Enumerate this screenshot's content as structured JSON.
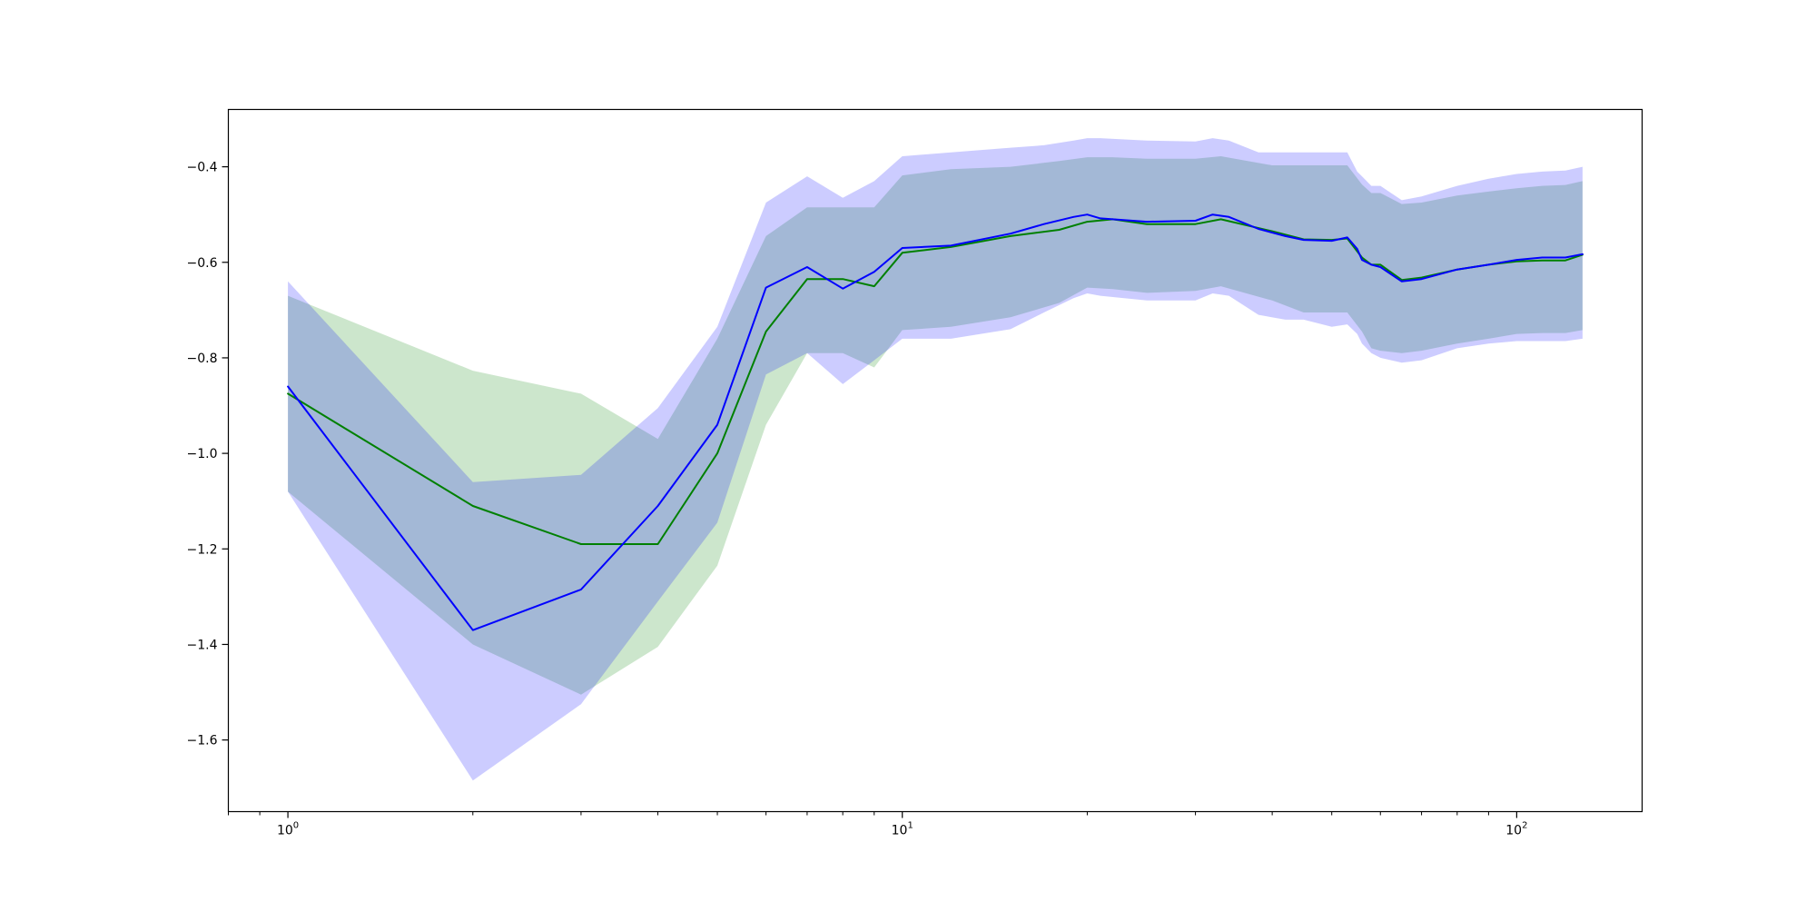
{
  "chart_data": {
    "type": "line",
    "title": "",
    "xlabel": "",
    "ylabel": "",
    "x_scale": "log",
    "xlim": [
      0.8,
      160
    ],
    "ylim": [
      -1.75,
      -0.28
    ],
    "grid": false,
    "x_ticks": [
      {
        "value": 1,
        "base": "10",
        "exp": "0"
      },
      {
        "value": 10,
        "base": "10",
        "exp": "1"
      },
      {
        "value": 100,
        "base": "10",
        "exp": "2"
      }
    ],
    "x_minor_ticks": [
      0.8,
      0.9,
      2,
      3,
      4,
      5,
      6,
      7,
      8,
      9,
      20,
      30,
      40,
      50,
      60,
      70,
      80,
      90
    ],
    "y_ticks": [
      {
        "value": -0.4,
        "label": "−0.4"
      },
      {
        "value": -0.6,
        "label": "−0.6"
      },
      {
        "value": -0.8,
        "label": "−0.8"
      },
      {
        "value": -1.0,
        "label": "−1.0"
      },
      {
        "value": -1.2,
        "label": "−1.2"
      },
      {
        "value": -1.4,
        "label": "−1.4"
      },
      {
        "value": -1.6,
        "label": "−1.6"
      }
    ],
    "series": [
      {
        "color": "#008000",
        "band_color": "#008000",
        "band_opacity": 0.2,
        "x": [
          1,
          2,
          3,
          4,
          5,
          6,
          7,
          8,
          9,
          10,
          12,
          15,
          18,
          20,
          22,
          25,
          30,
          33,
          40,
          45,
          50,
          53,
          56,
          58,
          60,
          65,
          70,
          80,
          90,
          100,
          110,
          120,
          128
        ],
        "y": [
          -0.875,
          -1.11,
          -1.19,
          -1.19,
          -1.0,
          -0.745,
          -0.635,
          -0.635,
          -0.65,
          -0.58,
          -0.568,
          -0.545,
          -0.532,
          -0.515,
          -0.51,
          -0.52,
          -0.52,
          -0.51,
          -0.535,
          -0.552,
          -0.553,
          -0.55,
          -0.59,
          -0.605,
          -0.605,
          -0.637,
          -0.632,
          -0.615,
          -0.605,
          -0.598,
          -0.596,
          -0.596,
          -0.584
        ],
        "upper": [
          -0.67,
          -0.827,
          -0.875,
          -0.97,
          -0.76,
          -0.545,
          -0.485,
          -0.485,
          -0.485,
          -0.418,
          -0.405,
          -0.4,
          -0.388,
          -0.38,
          -0.38,
          -0.383,
          -0.383,
          -0.378,
          -0.397,
          -0.397,
          -0.397,
          -0.397,
          -0.437,
          -0.455,
          -0.455,
          -0.478,
          -0.475,
          -0.46,
          -0.452,
          -0.445,
          -0.44,
          -0.438,
          -0.43
        ],
        "lower": [
          -1.08,
          -1.4,
          -1.505,
          -1.405,
          -1.235,
          -0.94,
          -0.79,
          -0.79,
          -0.82,
          -0.742,
          -0.735,
          -0.715,
          -0.685,
          -0.653,
          -0.656,
          -0.664,
          -0.66,
          -0.65,
          -0.68,
          -0.705,
          -0.705,
          -0.705,
          -0.745,
          -0.78,
          -0.785,
          -0.79,
          -0.785,
          -0.77,
          -0.76,
          -0.75,
          -0.748,
          -0.748,
          -0.742
        ]
      },
      {
        "color": "#0000ff",
        "band_color": "#0000ff",
        "band_opacity": 0.2,
        "x": [
          1,
          2,
          3,
          4,
          5,
          6,
          7,
          8,
          9,
          10,
          12,
          15,
          17,
          19,
          20,
          21,
          25,
          30,
          32,
          34,
          38,
          42,
          45,
          50,
          53,
          55,
          56,
          58,
          60,
          65,
          70,
          80,
          90,
          100,
          110,
          120,
          128
        ],
        "y": [
          -0.86,
          -1.37,
          -1.285,
          -1.11,
          -0.94,
          -0.653,
          -0.61,
          -0.655,
          -0.62,
          -0.57,
          -0.565,
          -0.54,
          -0.52,
          -0.505,
          -0.5,
          -0.508,
          -0.515,
          -0.513,
          -0.5,
          -0.505,
          -0.53,
          -0.545,
          -0.553,
          -0.555,
          -0.548,
          -0.572,
          -0.595,
          -0.605,
          -0.61,
          -0.64,
          -0.635,
          -0.615,
          -0.605,
          -0.595,
          -0.59,
          -0.59,
          -0.583
        ],
        "upper": [
          -0.64,
          -1.06,
          -1.045,
          -0.905,
          -0.735,
          -0.475,
          -0.42,
          -0.465,
          -0.43,
          -0.378,
          -0.37,
          -0.36,
          -0.355,
          -0.345,
          -0.34,
          -0.34,
          -0.345,
          -0.347,
          -0.34,
          -0.345,
          -0.37,
          -0.37,
          -0.37,
          -0.37,
          -0.37,
          -0.41,
          -0.42,
          -0.44,
          -0.44,
          -0.47,
          -0.462,
          -0.44,
          -0.425,
          -0.415,
          -0.41,
          -0.408,
          -0.4
        ],
        "lower": [
          -1.08,
          -1.685,
          -1.525,
          -1.31,
          -1.145,
          -0.835,
          -0.79,
          -0.855,
          -0.805,
          -0.76,
          -0.76,
          -0.74,
          -0.705,
          -0.675,
          -0.665,
          -0.67,
          -0.68,
          -0.68,
          -0.665,
          -0.67,
          -0.71,
          -0.72,
          -0.72,
          -0.735,
          -0.73,
          -0.75,
          -0.77,
          -0.79,
          -0.8,
          -0.81,
          -0.805,
          -0.78,
          -0.77,
          -0.765,
          -0.765,
          -0.765,
          -0.76
        ]
      }
    ]
  }
}
